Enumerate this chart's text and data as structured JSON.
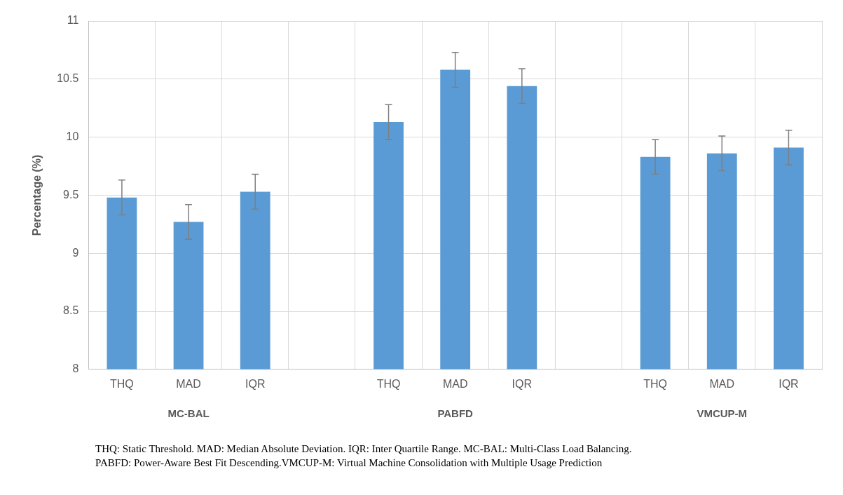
{
  "chart_data": {
    "type": "bar",
    "ylabel": "Percentage (%)",
    "categories": [
      "THQ",
      "MAD",
      "IQR",
      null,
      "THQ",
      "MAD",
      "IQR",
      null,
      "THQ",
      "MAD",
      "IQR"
    ],
    "values": [
      9.48,
      9.27,
      9.53,
      null,
      10.13,
      10.58,
      10.44,
      null,
      9.83,
      9.86,
      9.91
    ],
    "errors": [
      0.15,
      0.15,
      0.15,
      null,
      0.15,
      0.15,
      0.15,
      null,
      0.15,
      0.15,
      0.15
    ],
    "color": "#5b9bd5",
    "ylim": [
      8,
      11
    ],
    "yticks": [
      8,
      8.5,
      9,
      9.5,
      10,
      10.5,
      11
    ],
    "grid": true,
    "annotations": [
      "MC-BAL",
      "PABFD",
      "VMCUP-M",
      "THQ: Static Threshold. MAD: Median Absolute Deviation. IQR: Inter Quartile Range. MC-BAL: Multi-Class Load Balancing.",
      "PABFD: Power-Aware Best Fit Descending.VMCUP-M: Virtual Machine Consolidation with Multiple Usage Prediction"
    ]
  }
}
